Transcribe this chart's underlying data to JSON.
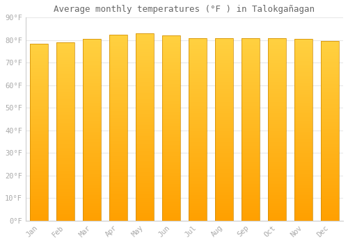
{
  "title": "Average monthly temperatures (°F ) in Talokgañagan",
  "months": [
    "Jan",
    "Feb",
    "Mar",
    "Apr",
    "May",
    "Jun",
    "Jul",
    "Aug",
    "Sep",
    "Oct",
    "Nov",
    "Dec"
  ],
  "values": [
    78.5,
    79.0,
    80.5,
    82.5,
    83.0,
    82.0,
    81.0,
    81.0,
    81.0,
    81.0,
    80.5,
    79.5
  ],
  "bar_color_top": "#FFD040",
  "bar_color_bottom": "#FFA000",
  "background_color": "#FFFFFF",
  "plot_bg_color": "#FFFFFF",
  "grid_color": "#E8E8E8",
  "text_color": "#AAAAAA",
  "title_color": "#666666",
  "ylim": [
    0,
    90
  ],
  "ytick_step": 10,
  "bar_edge_color": "#CC8800",
  "bar_edge_width": 0.5,
  "bar_width": 0.7,
  "figsize": [
    5.0,
    3.5
  ],
  "dpi": 100
}
